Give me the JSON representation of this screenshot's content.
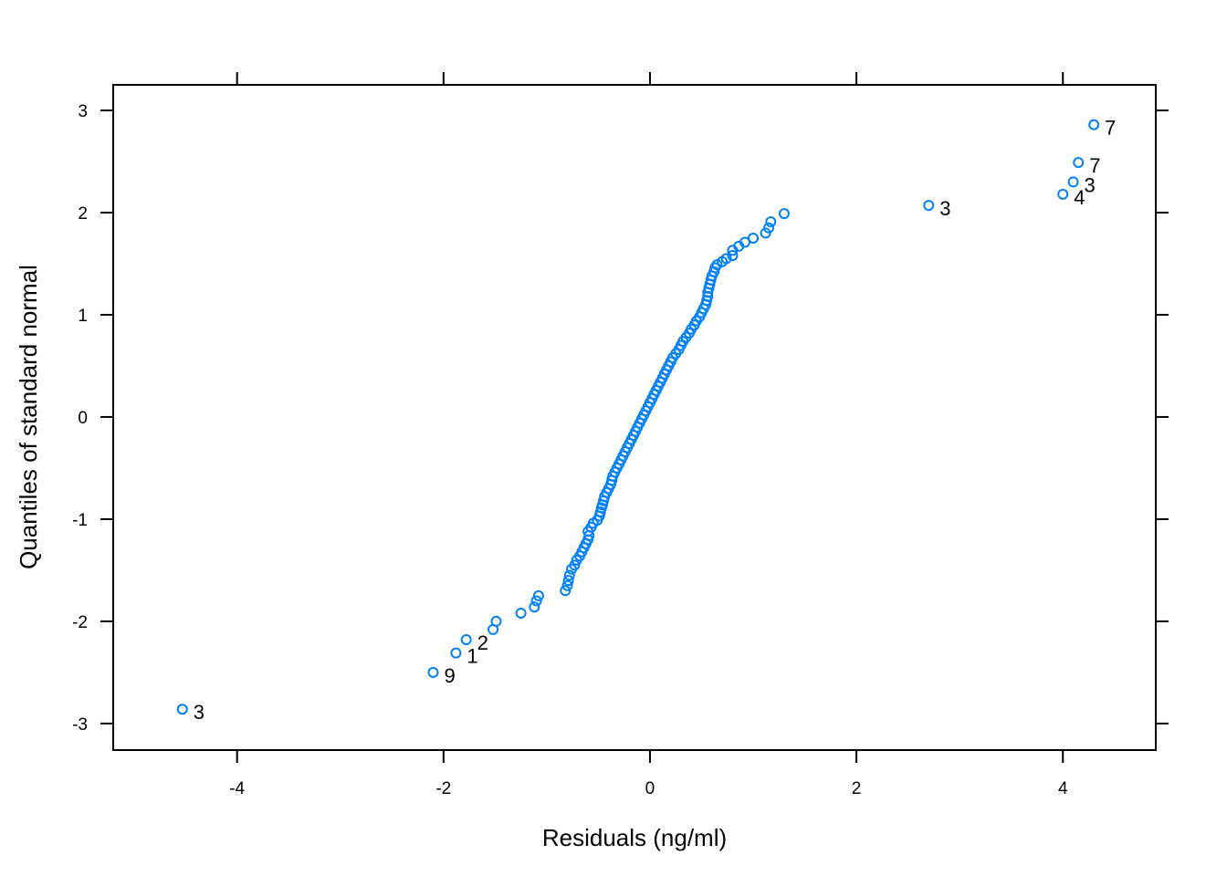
{
  "chart_data": {
    "type": "scatter",
    "title": "",
    "xlabel": "Residuals (ng/ml)",
    "ylabel": "Quantiles of standard normal",
    "xlim": [
      -5.2,
      4.9
    ],
    "ylim": [
      -3.26,
      3.25
    ],
    "xticks": [
      -4,
      -2,
      0,
      2,
      4
    ],
    "yticks": [
      -3,
      -2,
      -1,
      0,
      1,
      2,
      3
    ],
    "grid": false,
    "marker": "open-circle",
    "color": "#0080ff",
    "labeled_points": [
      {
        "x": -4.53,
        "y": -2.86,
        "label": "3"
      },
      {
        "x": -2.1,
        "y": -2.5,
        "label": "9"
      },
      {
        "x": -1.88,
        "y": -2.31,
        "label": "1"
      },
      {
        "x": -1.78,
        "y": -2.18,
        "label": "2"
      },
      {
        "x": 2.7,
        "y": 2.07,
        "label": "3"
      },
      {
        "x": 4.0,
        "y": 2.18,
        "label": "4"
      },
      {
        "x": 4.1,
        "y": 2.3,
        "label": "3"
      },
      {
        "x": 4.15,
        "y": 2.49,
        "label": "7"
      },
      {
        "x": 4.3,
        "y": 2.86,
        "label": "7"
      }
    ],
    "points": [
      {
        "x": -1.52,
        "y": -2.08
      },
      {
        "x": -1.49,
        "y": -2.0
      },
      {
        "x": -1.25,
        "y": -1.92
      },
      {
        "x": -1.12,
        "y": -1.86
      },
      {
        "x": -1.1,
        "y": -1.8
      },
      {
        "x": -1.08,
        "y": -1.75
      },
      {
        "x": -0.82,
        "y": -1.7
      },
      {
        "x": -0.8,
        "y": -1.65
      },
      {
        "x": -0.79,
        "y": -1.6
      },
      {
        "x": -0.78,
        "y": -1.55
      },
      {
        "x": -0.76,
        "y": -1.49
      },
      {
        "x": -0.73,
        "y": -1.45
      },
      {
        "x": -0.71,
        "y": -1.4
      },
      {
        "x": -0.68,
        "y": -1.36
      },
      {
        "x": -0.66,
        "y": -1.32
      },
      {
        "x": -0.64,
        "y": -1.28
      },
      {
        "x": -0.62,
        "y": -1.24
      },
      {
        "x": -0.6,
        "y": -1.2
      },
      {
        "x": -0.59,
        "y": -1.16
      },
      {
        "x": -0.6,
        "y": -1.12
      },
      {
        "x": -0.57,
        "y": -1.08
      },
      {
        "x": -0.55,
        "y": -1.04
      },
      {
        "x": -0.51,
        "y": -1.01
      },
      {
        "x": -0.49,
        "y": -0.97
      },
      {
        "x": -0.48,
        "y": -0.93
      },
      {
        "x": -0.47,
        "y": -0.89
      },
      {
        "x": -0.46,
        "y": -0.86
      },
      {
        "x": -0.45,
        "y": -0.82
      },
      {
        "x": -0.44,
        "y": -0.78
      },
      {
        "x": -0.42,
        "y": -0.74
      },
      {
        "x": -0.4,
        "y": -0.7
      },
      {
        "x": -0.38,
        "y": -0.66
      },
      {
        "x": -0.37,
        "y": -0.62
      },
      {
        "x": -0.36,
        "y": -0.58
      },
      {
        "x": -0.34,
        "y": -0.54
      },
      {
        "x": -0.32,
        "y": -0.5
      },
      {
        "x": -0.3,
        "y": -0.46
      },
      {
        "x": -0.28,
        "y": -0.42
      },
      {
        "x": -0.26,
        "y": -0.38
      },
      {
        "x": -0.24,
        "y": -0.34
      },
      {
        "x": -0.22,
        "y": -0.3
      },
      {
        "x": -0.2,
        "y": -0.26
      },
      {
        "x": -0.18,
        "y": -0.22
      },
      {
        "x": -0.16,
        "y": -0.18
      },
      {
        "x": -0.14,
        "y": -0.14
      },
      {
        "x": -0.12,
        "y": -0.1
      },
      {
        "x": -0.1,
        "y": -0.06
      },
      {
        "x": -0.08,
        "y": -0.02
      },
      {
        "x": -0.06,
        "y": 0.02
      },
      {
        "x": -0.04,
        "y": 0.06
      },
      {
        "x": -0.02,
        "y": 0.1
      },
      {
        "x": 0.0,
        "y": 0.14
      },
      {
        "x": 0.02,
        "y": 0.18
      },
      {
        "x": 0.04,
        "y": 0.22
      },
      {
        "x": 0.06,
        "y": 0.26
      },
      {
        "x": 0.08,
        "y": 0.3
      },
      {
        "x": 0.1,
        "y": 0.34
      },
      {
        "x": 0.12,
        "y": 0.38
      },
      {
        "x": 0.14,
        "y": 0.42
      },
      {
        "x": 0.16,
        "y": 0.46
      },
      {
        "x": 0.18,
        "y": 0.5
      },
      {
        "x": 0.2,
        "y": 0.54
      },
      {
        "x": 0.22,
        "y": 0.58
      },
      {
        "x": 0.25,
        "y": 0.62
      },
      {
        "x": 0.28,
        "y": 0.66
      },
      {
        "x": 0.3,
        "y": 0.7
      },
      {
        "x": 0.32,
        "y": 0.74
      },
      {
        "x": 0.35,
        "y": 0.78
      },
      {
        "x": 0.38,
        "y": 0.82
      },
      {
        "x": 0.4,
        "y": 0.86
      },
      {
        "x": 0.43,
        "y": 0.9
      },
      {
        "x": 0.45,
        "y": 0.94
      },
      {
        "x": 0.48,
        "y": 0.98
      },
      {
        "x": 0.5,
        "y": 1.02
      },
      {
        "x": 0.52,
        "y": 1.06
      },
      {
        "x": 0.54,
        "y": 1.1
      },
      {
        "x": 0.55,
        "y": 1.14
      },
      {
        "x": 0.56,
        "y": 1.18
      },
      {
        "x": 0.56,
        "y": 1.22
      },
      {
        "x": 0.57,
        "y": 1.26
      },
      {
        "x": 0.58,
        "y": 1.3
      },
      {
        "x": 0.59,
        "y": 1.34
      },
      {
        "x": 0.6,
        "y": 1.38
      },
      {
        "x": 0.62,
        "y": 1.42
      },
      {
        "x": 0.63,
        "y": 1.46
      },
      {
        "x": 0.65,
        "y": 1.49
      },
      {
        "x": 0.7,
        "y": 1.52
      },
      {
        "x": 0.74,
        "y": 1.55
      },
      {
        "x": 0.8,
        "y": 1.58
      },
      {
        "x": 0.8,
        "y": 1.63
      },
      {
        "x": 0.86,
        "y": 1.67
      },
      {
        "x": 0.92,
        "y": 1.71
      },
      {
        "x": 1.0,
        "y": 1.75
      },
      {
        "x": 1.12,
        "y": 1.8
      },
      {
        "x": 1.15,
        "y": 1.85
      },
      {
        "x": 1.17,
        "y": 1.91
      },
      {
        "x": 1.3,
        "y": 1.99
      }
    ]
  }
}
